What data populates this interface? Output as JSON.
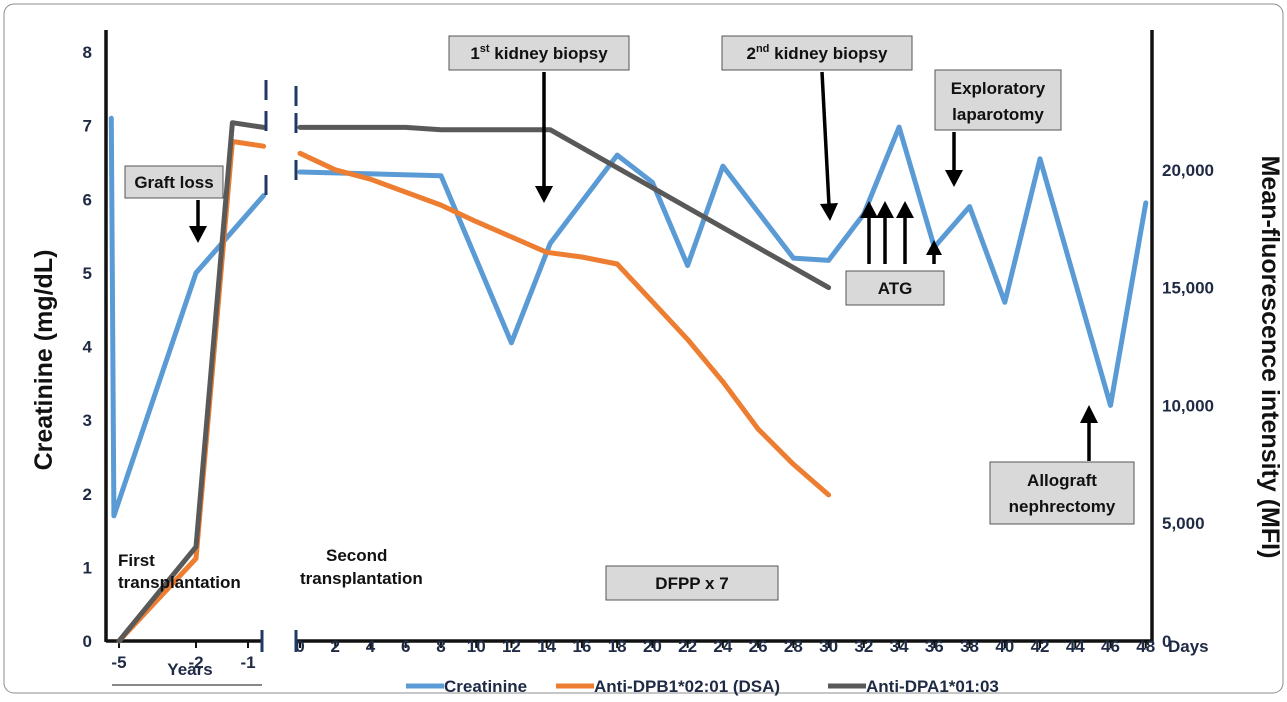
{
  "chart_data": {
    "type": "line",
    "colors": {
      "Creatinine": "#5b9bd5",
      "Anti-DPB1*02:01 (DSA)": "#ed7d31",
      "Anti-DPA1*01:03": "#595959"
    },
    "y_left": {
      "label": "Creatinine (mg/dL)",
      "ticks": [
        "0",
        "1",
        "2",
        "3",
        "4",
        "5",
        "6",
        "7",
        "8"
      ],
      "range": [
        0,
        8
      ]
    },
    "y_right": {
      "label": "Mean-fluorescence intensity (MFI)",
      "ticks": [
        "0",
        "5,000",
        "10,000",
        "15,000",
        "20,000"
      ],
      "range": [
        0,
        25000
      ]
    },
    "x_years": {
      "label": "Years",
      "ticks": [
        "-5",
        "-2",
        "-1"
      ]
    },
    "x_days": {
      "label": "Days",
      "ticks": [
        "0",
        "2",
        "4",
        "6",
        "8",
        "10",
        "12",
        "14",
        "16",
        "18",
        "20",
        "22",
        "24",
        "26",
        "28",
        "30",
        "32",
        "34",
        "36",
        "38",
        "40",
        "42",
        "44",
        "46",
        "48"
      ]
    },
    "series": [
      {
        "name": "Creatinine",
        "axis": "left",
        "years": [
          [
            -5.3,
            7.1
          ],
          [
            -5.2,
            1.7
          ],
          [
            -2.0,
            5.0
          ],
          [
            -0.7,
            6.05
          ]
        ],
        "days": [
          [
            0,
            6.37
          ],
          [
            8,
            6.32
          ],
          [
            12,
            4.05
          ],
          [
            14.2,
            5.4
          ],
          [
            18,
            6.6
          ],
          [
            20,
            6.23
          ],
          [
            22,
            5.1
          ],
          [
            24,
            6.45
          ],
          [
            28,
            5.2
          ],
          [
            30,
            5.17
          ],
          [
            32,
            5.8
          ],
          [
            34,
            6.98
          ],
          [
            36,
            5.35
          ],
          [
            38,
            5.9
          ],
          [
            40,
            4.6
          ],
          [
            42,
            6.55
          ],
          [
            46,
            3.2
          ],
          [
            48,
            5.95
          ]
        ]
      },
      {
        "name": "Anti-DPB1*02:01 (DSA)",
        "axis": "right",
        "years": [
          [
            -5.0,
            0
          ],
          [
            -2.0,
            3500
          ],
          [
            -1.3,
            21200
          ],
          [
            -0.7,
            21000
          ]
        ],
        "days": [
          [
            0,
            20700
          ],
          [
            2,
            20000
          ],
          [
            4,
            19600
          ],
          [
            8,
            18500
          ],
          [
            10,
            17800
          ],
          [
            14,
            16500
          ],
          [
            16,
            16300
          ],
          [
            18,
            16000
          ],
          [
            20,
            14400
          ],
          [
            22,
            12800
          ],
          [
            24,
            11000
          ],
          [
            26,
            9000
          ],
          [
            28,
            7500
          ],
          [
            30,
            6200
          ]
        ]
      },
      {
        "name": "Anti-DPA1*01:03",
        "axis": "right",
        "years": [
          [
            -5.0,
            0
          ],
          [
            -2.0,
            4000
          ],
          [
            -1.3,
            22000
          ],
          [
            -0.7,
            21800
          ]
        ],
        "days": [
          [
            0,
            21800
          ],
          [
            6,
            21800
          ],
          [
            8,
            21700
          ],
          [
            14.2,
            21700
          ],
          [
            30,
            15000
          ]
        ]
      }
    ],
    "annotations": {
      "graft_loss": "Graft loss",
      "biopsy1_pre": "1",
      "biopsy1_sup": "st",
      "biopsy1_post": " kidney biopsy",
      "biopsy2_pre": "2",
      "biopsy2_sup": "nd",
      "biopsy2_post": " kidney biopsy",
      "exploratory_1": "Exploratory",
      "exploratory_2": "laparotomy",
      "atg": "ATG",
      "dfpp": "DFPP x 7",
      "allograft_1": "Allograft",
      "allograft_2": "nephrectomy",
      "first_tx_1": "First",
      "first_tx_2": "transplantation",
      "second_tx_1": "Second",
      "second_tx_2": "transplantation"
    },
    "legend": {
      "placement": "bottom",
      "items": [
        "Creatinine",
        "Anti-DPB1*02:01 (DSA)",
        "Anti-DPA1*01:03"
      ]
    }
  }
}
